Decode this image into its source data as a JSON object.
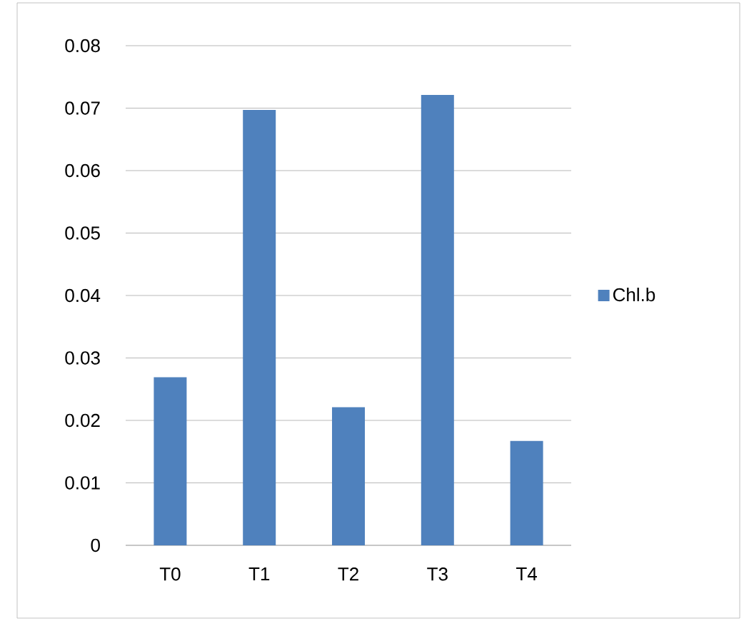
{
  "chart_data": {
    "type": "bar",
    "categories": [
      "T0",
      "T1",
      "T2",
      "T3",
      "T4"
    ],
    "series": [
      {
        "name": "Chl.b",
        "color": "#4f81bd",
        "values": [
          0.0269,
          0.0697,
          0.0221,
          0.0721,
          0.0167
        ]
      }
    ],
    "ylim": [
      0,
      0.08
    ],
    "yticks": [
      0,
      0.01,
      0.02,
      0.03,
      0.04,
      0.05,
      0.06,
      0.07,
      0.08
    ],
    "grid": "y",
    "legend": "right"
  }
}
